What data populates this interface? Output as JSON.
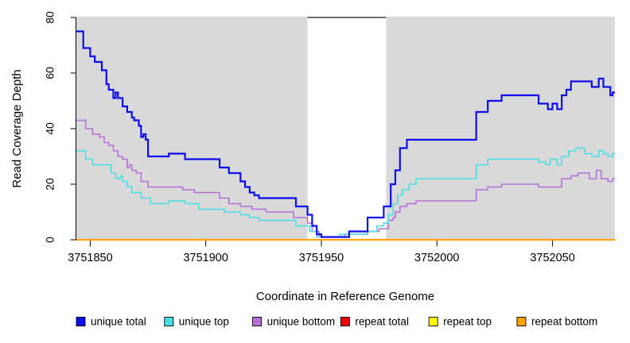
{
  "chart_data": {
    "type": "line",
    "title": "",
    "xlabel": "Coordinate in Reference Genome",
    "ylabel": "Read Coverage Depth",
    "xlim": [
      3751844,
      3752077
    ],
    "ylim": [
      0,
      80
    ],
    "xticks": [
      3751850,
      3751900,
      3751950,
      3752000,
      3752050
    ],
    "yticks": [
      0,
      20,
      40,
      60,
      80
    ],
    "grid": false,
    "legend_position": "bottom",
    "plot_bg_color": "#d9d9d9",
    "axis_color": "#000000",
    "gap_region": {
      "x_start": 3751944,
      "x_end": 3751978,
      "color": "#ffffff",
      "top_border_color": "#6e6e6e"
    },
    "series": [
      {
        "name": "unique total",
        "color": "#0d0deb",
        "width": 2.2,
        "points": [
          [
            3751844,
            75
          ],
          [
            3751847,
            69
          ],
          [
            3751850,
            66
          ],
          [
            3751852,
            64
          ],
          [
            3751855,
            61
          ],
          [
            3751857,
            56
          ],
          [
            3751858,
            54
          ],
          [
            3751860,
            51
          ],
          [
            3751861,
            53
          ],
          [
            3751862,
            51
          ],
          [
            3751864,
            48
          ],
          [
            3751866,
            46
          ],
          [
            3751868,
            44
          ],
          [
            3751869,
            43
          ],
          [
            3751871,
            41
          ],
          [
            3751872,
            37
          ],
          [
            3751873,
            38
          ],
          [
            3751874,
            36
          ],
          [
            3751875,
            30
          ],
          [
            3751884,
            31
          ],
          [
            3751891,
            29
          ],
          [
            3751906,
            26
          ],
          [
            3751910,
            24
          ],
          [
            3751915,
            21
          ],
          [
            3751917,
            19
          ],
          [
            3751919,
            17
          ],
          [
            3751921,
            16
          ],
          [
            3751923,
            15
          ],
          [
            3751939,
            12
          ],
          [
            3751944,
            9
          ],
          [
            3751946,
            5
          ],
          [
            3751948,
            2
          ],
          [
            3751950,
            1
          ],
          [
            3751962,
            3
          ],
          [
            3751970,
            8
          ],
          [
            3751977,
            12
          ],
          [
            3751980,
            20
          ],
          [
            3751982,
            25
          ],
          [
            3751984,
            33
          ],
          [
            3751987,
            36
          ],
          [
            3752017,
            46
          ],
          [
            3752022,
            50
          ],
          [
            3752028,
            52
          ],
          [
            3752044,
            49
          ],
          [
            3752048,
            47
          ],
          [
            3752050,
            49
          ],
          [
            3752052,
            47
          ],
          [
            3752054,
            52
          ],
          [
            3752056,
            54
          ],
          [
            3752058,
            57
          ],
          [
            3752067,
            55
          ],
          [
            3752070,
            58
          ],
          [
            3752072,
            55
          ],
          [
            3752075,
            52
          ],
          [
            3752076,
            53
          ]
        ]
      },
      {
        "name": "unique top",
        "color": "#49dfe6",
        "width": 1.6,
        "points": [
          [
            3751844,
            32
          ],
          [
            3751848,
            29
          ],
          [
            3751851,
            27
          ],
          [
            3751859,
            24
          ],
          [
            3751861,
            22
          ],
          [
            3751863,
            23
          ],
          [
            3751864,
            21
          ],
          [
            3751866,
            19
          ],
          [
            3751868,
            17
          ],
          [
            3751872,
            15
          ],
          [
            3751876,
            13
          ],
          [
            3751884,
            14
          ],
          [
            3751891,
            13
          ],
          [
            3751897,
            11
          ],
          [
            3751908,
            10
          ],
          [
            3751915,
            9
          ],
          [
            3751919,
            8
          ],
          [
            3751923,
            7
          ],
          [
            3751939,
            5
          ],
          [
            3751945,
            3
          ],
          [
            3751948,
            1
          ],
          [
            3751958,
            2
          ],
          [
            3751970,
            3
          ],
          [
            3751974,
            5
          ],
          [
            3751977,
            6
          ],
          [
            3751979,
            9
          ],
          [
            3751981,
            13
          ],
          [
            3751983,
            16
          ],
          [
            3751985,
            18
          ],
          [
            3751988,
            20
          ],
          [
            3751991,
            22
          ],
          [
            3752017,
            27
          ],
          [
            3752022,
            29
          ],
          [
            3752044,
            28
          ],
          [
            3752047,
            27
          ],
          [
            3752049,
            29
          ],
          [
            3752052,
            27
          ],
          [
            3752054,
            30
          ],
          [
            3752057,
            32
          ],
          [
            3752060,
            33
          ],
          [
            3752064,
            31
          ],
          [
            3752067,
            30
          ],
          [
            3752070,
            32
          ],
          [
            3752072,
            31
          ],
          [
            3752074,
            30
          ],
          [
            3752076,
            31
          ]
        ]
      },
      {
        "name": "unique bottom",
        "color": "#b671d8",
        "width": 1.6,
        "points": [
          [
            3751844,
            43
          ],
          [
            3751848,
            40
          ],
          [
            3751851,
            38
          ],
          [
            3751854,
            37
          ],
          [
            3751856,
            35
          ],
          [
            3751858,
            34
          ],
          [
            3751860,
            32
          ],
          [
            3751862,
            30
          ],
          [
            3751864,
            29
          ],
          [
            3751866,
            26
          ],
          [
            3751867,
            27
          ],
          [
            3751868,
            25
          ],
          [
            3751870,
            24
          ],
          [
            3751872,
            21
          ],
          [
            3751875,
            19
          ],
          [
            3751890,
            18
          ],
          [
            3751895,
            17
          ],
          [
            3751906,
            15
          ],
          [
            3751910,
            13
          ],
          [
            3751915,
            12
          ],
          [
            3751920,
            11
          ],
          [
            3751926,
            10
          ],
          [
            3751938,
            8
          ],
          [
            3751944,
            6
          ],
          [
            3751946,
            3
          ],
          [
            3751949,
            1
          ],
          [
            3751960,
            2
          ],
          [
            3751970,
            3
          ],
          [
            3751975,
            4
          ],
          [
            3751979,
            7
          ],
          [
            3751981,
            8
          ],
          [
            3751982,
            10
          ],
          [
            3751984,
            12
          ],
          [
            3751987,
            13
          ],
          [
            3751991,
            14
          ],
          [
            3752017,
            18
          ],
          [
            3752022,
            19
          ],
          [
            3752028,
            20
          ],
          [
            3752044,
            19
          ],
          [
            3752054,
            22
          ],
          [
            3752058,
            23
          ],
          [
            3752061,
            24
          ],
          [
            3752066,
            22
          ],
          [
            3752069,
            25
          ],
          [
            3752071,
            22
          ],
          [
            3752074,
            21
          ],
          [
            3752076,
            22
          ]
        ]
      },
      {
        "name": "repeat total",
        "color": "#ee0000",
        "width": 1.6,
        "points": [
          [
            3751844,
            0
          ]
        ]
      },
      {
        "name": "repeat top",
        "color": "#ffff00",
        "width": 1.6,
        "points": [
          [
            3751844,
            0
          ]
        ]
      },
      {
        "name": "repeat bottom",
        "color": "#ffa500",
        "width": 2.2,
        "points": [
          [
            3751844,
            0
          ]
        ]
      }
    ]
  }
}
